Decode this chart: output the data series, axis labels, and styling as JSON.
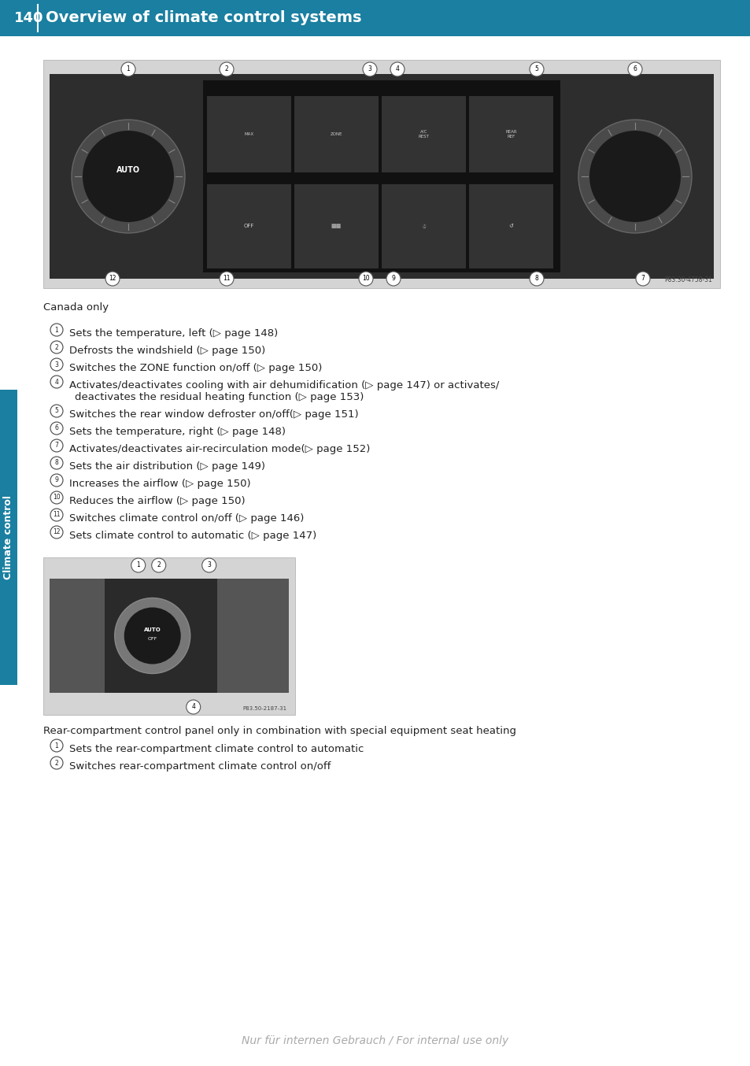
{
  "page_number": "140",
  "header_title": "Overview of climate control systems",
  "header_bg_color": "#1a7fa0",
  "header_text_color": "#ffffff",
  "sidebar_label": "Climate control",
  "sidebar_bg_color": "#1a7fa0",
  "sidebar_text_color": "#ffffff",
  "bg_color": "#ffffff",
  "canada_only_label": "Canada only",
  "items": [
    {
      "num": "1",
      "text": "Sets the temperature, left (▷ page 148)"
    },
    {
      "num": "2",
      "text": "Defrosts the windshield (▷ page 150)"
    },
    {
      "num": "3",
      "text": "Switches the ZONE function on/off (▷ page 150)"
    },
    {
      "num": "4",
      "text": "Activates/deactivates cooling with air dehumidification (▷ page 147) or activates/\n      deactivates the residual heating function (▷ page 153)"
    },
    {
      "num": "5",
      "text": "Switches the rear window defroster on/off(▷ page 151)"
    },
    {
      "num": "6",
      "text": "Sets the temperature, right (▷ page 148)"
    },
    {
      "num": "7",
      "text": "Activates/deactivates air-recirculation mode(▷ page 152)"
    },
    {
      "num": "8",
      "text": "Sets the air distribution (▷ page 149)"
    },
    {
      "num": "9",
      "text": "Increases the airflow (▷ page 150)"
    },
    {
      "num": "10",
      "text": "Reduces the airflow (▷ page 150)"
    },
    {
      "num": "11",
      "text": "Switches climate control on/off (▷ page 146)"
    },
    {
      "num": "12",
      "text": "Sets climate control to automatic (▷ page 147)"
    }
  ],
  "rear_caption": "Rear-compartment control panel only in combination with special equipment seat heating",
  "rear_items": [
    {
      "num": "1",
      "text": "Sets the rear-compartment climate control to automatic"
    },
    {
      "num": "2",
      "text": "Switches rear-compartment climate control on/off"
    }
  ],
  "watermark": "Nur für internen Gebrauch / For internal use only"
}
